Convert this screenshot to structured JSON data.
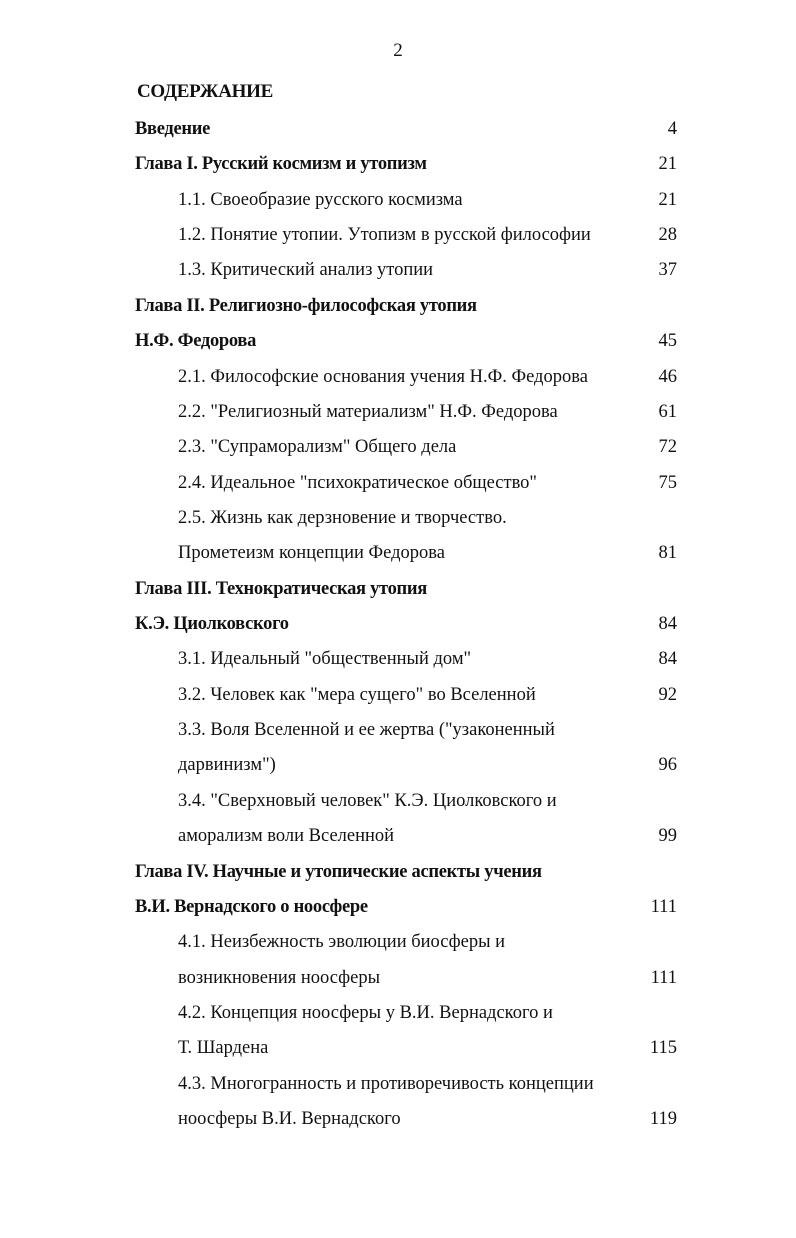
{
  "page_number": "2",
  "title": "СОДЕРЖАНИЕ",
  "toc": [
    {
      "text": "Введение",
      "page": "4",
      "bold": true
    },
    {
      "text": "Глава I. Русский космизм и утопизм",
      "page": "21",
      "bold": true
    },
    {
      "text": "1.1. Своеобразие русского космизма",
      "page": "21"
    },
    {
      "text": "1.2. Понятие утопии. Утопизм в русской философии",
      "page": "28"
    },
    {
      "text": "1.3. Критический анализ утопии",
      "page": "37"
    },
    {
      "text": "Глава II. Религиозно-философская утопия",
      "page": "",
      "bold": true
    },
    {
      "text": "Н.Ф. Федорова",
      "page": "45",
      "bold": true
    },
    {
      "text": "2.1. Философские основания  учения Н.Ф. Федорова",
      "page": "46"
    },
    {
      "text": "2.2. \"Религиозный материализм\" Н.Ф. Федорова",
      "page": "61"
    },
    {
      "text": "2.3. \"Супраморализм\" Общего дела",
      "page": "72"
    },
    {
      "text": "2.4. Идеальное \"психократическое общество\"",
      "page": "75"
    },
    {
      "text": "2.5. Жизнь как дерзновение и творчество.",
      "page": ""
    },
    {
      "text": "Прометеизм концепции Федорова",
      "page": "81"
    },
    {
      "text": "Глава III. Технократическая утопия",
      "page": "",
      "bold": true
    },
    {
      "text": "К.Э. Циолковского",
      "page": "84",
      "bold": true
    },
    {
      "text": "3.1. Идеальный \"общественный дом\"",
      "page": "84"
    },
    {
      "text": "3.2. Человек как \"мера сущего\" во Вселенной",
      "page": "92"
    },
    {
      "text": "3.3. Воля Вселенной и ее жертва (\"узаконенный",
      "page": ""
    },
    {
      "text": "дарвинизм\")",
      "page": "96"
    },
    {
      "text": "3.4. \"Сверхновый человек\" К.Э. Циолковского и",
      "page": ""
    },
    {
      "text": "аморализм воли Вселенной",
      "page": "99"
    },
    {
      "text": "Глава IV. Научные и утопические аспекты учения",
      "page": "",
      "bold": true
    },
    {
      "text": "В.И. Вернадского о ноосфере",
      "page": "111",
      "bold": true
    },
    {
      "text": "4.1. Неизбежность эволюции биосферы и",
      "page": ""
    },
    {
      "text": "возникновения ноосферы",
      "page": "111"
    },
    {
      "text": "4.2. Концепция ноосферы у В.И. Вернадского и",
      "page": ""
    },
    {
      "text": "Т. Шардена",
      "page": "115"
    },
    {
      "text": "4.3. Многогранность и противоречивость концепции",
      "page": ""
    },
    {
      "text": "ноосферы В.И. Вернадского",
      "page": "119"
    }
  ]
}
